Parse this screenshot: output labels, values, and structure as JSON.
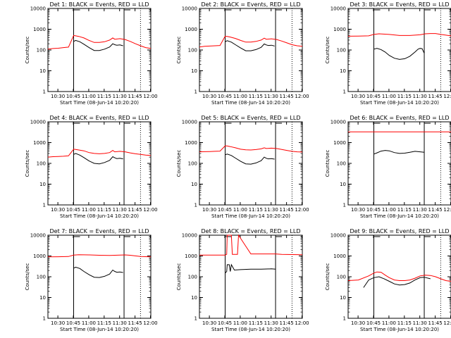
{
  "chart_data": {
    "type": "line",
    "grid": false,
    "legend": "none",
    "yscale": "log",
    "ylim": [
      1,
      10000
    ],
    "yticklabels": [
      "1",
      "10",
      "100",
      "1000",
      "10000"
    ],
    "ylabel": "Counts/sec",
    "xlabel": "Start Time (08-Jun-14 10:20:20)",
    "colors": {
      "events": "#000000",
      "lld": "#ff0000"
    },
    "panels": [
      {
        "title": "Det 1: BLACK = Events, RED = LLD",
        "xticklabels": [
          "10:30",
          "10:45",
          "11:00",
          "11:15",
          "11:30",
          "11:45",
          "12:00"
        ],
        "xtick_minutes": [
          9.67,
          24.67,
          39.67,
          54.67,
          69.67,
          84.67,
          99.67
        ],
        "xlim_minutes": [
          0,
          100
        ],
        "markers_minutes": [
          25,
          74,
          90
        ],
        "series": [
          {
            "name": "BLACK = Events",
            "x": [
              25,
              27,
              31,
              35,
              40,
              45,
              50,
              55,
              60,
              63,
              65,
              67,
              70,
              73
            ],
            "y": [
              260,
              290,
              250,
              190,
              130,
              95,
              95,
              110,
              140,
              200,
              180,
              170,
              175,
              160
            ]
          },
          {
            "name": "RED = LLD",
            "x": [
              0,
              5,
              10,
              15,
              20,
              25,
              27,
              30,
              35,
              40,
              45,
              50,
              55,
              60,
              63,
              65,
              70,
              75,
              80,
              85,
              90,
              95,
              100
            ],
            "y": [
              110,
              118,
              122,
              130,
              138,
              500,
              480,
              450,
              380,
              290,
              230,
              230,
              250,
              300,
              380,
              330,
              350,
              320,
              260,
              200,
              160,
              130,
              120
            ]
          }
        ]
      },
      {
        "title": "Det 2: BLACK = Events, RED = LLD",
        "xticklabels": [
          "10:30",
          "10:45",
          "11:00",
          "11:15",
          "11:30",
          "11:45",
          "12:00"
        ],
        "xtick_minutes": [
          9.67,
          24.67,
          39.67,
          54.67,
          69.67,
          84.67,
          99.67
        ],
        "xlim_minutes": [
          0,
          100
        ],
        "markers_minutes": [
          25,
          74,
          90
        ],
        "series": [
          {
            "name": "BLACK = Events",
            "x": [
              25,
              27,
              31,
              35,
              40,
              45,
              50,
              55,
              60,
              63,
              65,
              67,
              70,
              73
            ],
            "y": [
              250,
              280,
              240,
              180,
              125,
              92,
              92,
              105,
              135,
              195,
              175,
              165,
              170,
              155
            ]
          },
          {
            "name": "RED = LLD",
            "x": [
              0,
              5,
              10,
              15,
              20,
              25,
              27,
              30,
              35,
              40,
              45,
              50,
              55,
              60,
              63,
              65,
              70,
              75,
              80,
              85,
              90,
              95,
              100
            ],
            "y": [
              140,
              150,
              155,
              160,
              165,
              460,
              450,
              420,
              360,
              290,
              240,
              240,
              260,
              300,
              370,
              330,
              345,
              320,
              270,
              220,
              180,
              160,
              150
            ]
          }
        ]
      },
      {
        "title": "Det 3: BLACK = Events, RED = LLD",
        "xticklabels": [
          "10:30",
          "10:45",
          "11:00",
          "11:15",
          "11:30",
          "11:45",
          "12:00"
        ],
        "xtick_minutes": [
          9.67,
          24.67,
          39.67,
          54.67,
          69.67,
          84.67,
          99.67
        ],
        "xlim_minutes": [
          0,
          100
        ],
        "markers_minutes": [
          25,
          74,
          90
        ],
        "series": [
          {
            "name": "BLACK = Events",
            "x": [
              25,
              28,
              32,
              36,
              40,
              45,
              50,
              55,
              60,
              65,
              68,
              70,
              72,
              74
            ],
            "y": [
              110,
              120,
              105,
              80,
              55,
              40,
              35,
              38,
              50,
              80,
              110,
              120,
              115,
              70
            ]
          },
          {
            "name": "RED = LLD",
            "x": [
              0,
              10,
              20,
              25,
              30,
              40,
              50,
              60,
              70,
              75,
              80,
              85,
              90,
              95,
              100
            ],
            "y": [
              460,
              470,
              480,
              560,
              600,
              560,
              500,
              500,
              540,
              600,
              620,
              620,
              560,
              520,
              480
            ]
          }
        ]
      },
      {
        "title": "Det 4: BLACK = Events, RED = LLD",
        "xticklabels": [
          "10:30",
          "10:45",
          "11:00",
          "11:15",
          "11:30",
          "11:45",
          "12:00"
        ],
        "xtick_minutes": [
          9.67,
          24.67,
          39.67,
          54.67,
          69.67,
          84.67,
          99.67
        ],
        "xlim_minutes": [
          0,
          100
        ],
        "markers_minutes": [
          25,
          74,
          90
        ],
        "series": [
          {
            "name": "BLACK = Events",
            "x": [
              25,
              27,
              31,
              35,
              40,
              45,
              50,
              55,
              60,
              63,
              65,
              67,
              70,
              73
            ],
            "y": [
              270,
              300,
              250,
              190,
              130,
              100,
              95,
              110,
              140,
              210,
              185,
              170,
              175,
              165
            ]
          },
          {
            "name": "RED = LLD",
            "x": [
              0,
              5,
              10,
              15,
              20,
              25,
              27,
              30,
              35,
              40,
              45,
              50,
              55,
              60,
              63,
              65,
              70,
              75,
              80,
              85,
              90,
              95,
              100
            ],
            "y": [
              200,
              210,
              215,
              220,
              230,
              480,
              470,
              440,
              400,
              330,
              300,
              290,
              300,
              330,
              420,
              360,
              380,
              360,
              320,
              290,
              270,
              250,
              240
            ]
          }
        ]
      },
      {
        "title": "Det 5: BLACK = Events, RED = LLD",
        "xticklabels": [
          "10:30",
          "10:45",
          "11:00",
          "11:15",
          "11:30",
          "11:45",
          "12:00"
        ],
        "xtick_minutes": [
          9.67,
          24.67,
          39.67,
          54.67,
          69.67,
          84.67,
          99.67
        ],
        "xlim_minutes": [
          0,
          100
        ],
        "markers_minutes": [
          25,
          74,
          90
        ],
        "series": [
          {
            "name": "BLACK = Events",
            "x": [
              25,
              27,
              31,
              35,
              40,
              45,
              50,
              55,
              60,
              63,
              65,
              67,
              70,
              73
            ],
            "y": [
              260,
              280,
              240,
              180,
              125,
              95,
              92,
              105,
              135,
              200,
              175,
              165,
              170,
              160
            ]
          },
          {
            "name": "RED = LLD",
            "x": [
              0,
              5,
              10,
              15,
              20,
              25,
              27,
              30,
              35,
              40,
              45,
              50,
              55,
              60,
              63,
              65,
              70,
              75,
              80,
              85,
              90,
              95,
              100
            ],
            "y": [
              360,
              365,
              370,
              380,
              390,
              700,
              690,
              640,
              560,
              480,
              450,
              440,
              460,
              500,
              560,
              520,
              540,
              520,
              470,
              420,
              380,
              360,
              350
            ]
          }
        ]
      },
      {
        "title": "Det 6: BLACK = Events, RED = LLD",
        "xticklabels": [
          "10:30",
          "10:45",
          "11:00",
          "11:15",
          "11:30",
          "11:45",
          "12:00"
        ],
        "xtick_minutes": [
          9.67,
          24.67,
          39.67,
          54.67,
          69.67,
          84.67,
          99.67
        ],
        "xlim_minutes": [
          0,
          100
        ],
        "markers_minutes": [
          25,
          74,
          90
        ],
        "series": [
          {
            "name": "BLACK = Events",
            "x": [
              25,
              28,
              32,
              36,
              40,
              45,
              50,
              55,
              60,
              65,
              70,
              74
            ],
            "y": [
              280,
              320,
              390,
              420,
              400,
              330,
              300,
              310,
              340,
              380,
              360,
              340
            ]
          },
          {
            "name": "RED = LLD",
            "x": [
              0,
              20,
              40,
              60,
              80,
              100
            ],
            "y": [
              3300,
              3300,
              3300,
              3300,
              3300,
              3300
            ]
          }
        ]
      },
      {
        "title": "Det 7: BLACK = Events, RED = LLD",
        "xticklabels": [
          "10:30",
          "10:45",
          "11:00",
          "11:15",
          "11:30",
          "11:45",
          "12:00"
        ],
        "xtick_minutes": [
          9.67,
          24.67,
          39.67,
          54.67,
          69.67,
          84.67,
          99.67
        ],
        "xlim_minutes": [
          0,
          100
        ],
        "markers_minutes": [
          25,
          74,
          90
        ],
        "series": [
          {
            "name": "BLACK = Events",
            "x": [
              25,
              27,
              31,
              35,
              40,
              45,
              50,
              55,
              60,
              63,
              65,
              67,
              70,
              73
            ],
            "y": [
              260,
              290,
              250,
              180,
              125,
              95,
              92,
              105,
              135,
              210,
              180,
              165,
              170,
              160
            ]
          },
          {
            "name": "RED = LLD",
            "x": [
              0,
              10,
              20,
              25,
              30,
              40,
              50,
              60,
              70,
              75,
              80,
              90,
              100
            ],
            "y": [
              900,
              920,
              940,
              1100,
              1150,
              1120,
              1080,
              1060,
              1100,
              1120,
              1080,
              950,
              900
            ]
          }
        ]
      },
      {
        "title": "Det 8: BLACK = Events, RED = LLD",
        "xticklabels": [
          "10:30",
          "10:45",
          "11:00",
          "11:15",
          "11:30",
          "11:45",
          "12:00"
        ],
        "xtick_minutes": [
          9.67,
          24.67,
          39.67,
          54.67,
          69.67,
          84.67,
          99.67
        ],
        "xlim_minutes": [
          0,
          100
        ],
        "markers_minutes": [
          25,
          74,
          90
        ],
        "series": [
          {
            "name": "BLACK = Events",
            "x": [
              25,
              26.5,
              27,
              29,
              30,
              31,
              34,
              40,
              50,
              60,
              70,
              74
            ],
            "y": [
              150,
              180,
              380,
              380,
              180,
              380,
              210,
              220,
              230,
              230,
              240,
              230
            ]
          },
          {
            "name": "RED = LLD",
            "x": [
              0,
              25,
              26.5,
              27,
              31,
              32,
              37,
              38,
              50,
              60,
              74,
              80,
              100
            ],
            "y": [
              1100,
              1100,
              1200,
              10000,
              10000,
              1200,
              1200,
              10000,
              1250,
              1250,
              1250,
              1200,
              1150
            ]
          }
        ]
      },
      {
        "title": "Det 9: BLACK = Events, RED = LLD",
        "xticklabels": [
          "10:30",
          "10:45",
          "11:00",
          "11:15",
          "11:30",
          "11:45",
          "12:00"
        ],
        "xtick_minutes": [
          9.67,
          24.67,
          39.67,
          54.67,
          69.67,
          84.67,
          99.67
        ],
        "xlim_minutes": [
          0,
          100
        ],
        "markers_minutes": [
          25,
          74,
          90
        ],
        "series": [
          {
            "name": "BLACK = Events",
            "x": [
              15,
              20,
              25,
              30,
              35,
              40,
              45,
              50,
              55,
              60,
              65,
              70,
              74,
              80
            ],
            "y": [
              30,
              70,
              90,
              100,
              80,
              60,
              45,
              40,
              42,
              50,
              70,
              90,
              95,
              80
            ]
          },
          {
            "name": "RED = LLD",
            "x": [
              0,
              10,
              20,
              25,
              28,
              32,
              36,
              40,
              45,
              50,
              55,
              60,
              65,
              70,
              75,
              80,
              85,
              90,
              95,
              100
            ],
            "y": [
              65,
              70,
              110,
              150,
              170,
              165,
              120,
              90,
              70,
              65,
              65,
              70,
              85,
              110,
              120,
              115,
              100,
              80,
              65,
              60
            ]
          }
        ]
      }
    ]
  }
}
